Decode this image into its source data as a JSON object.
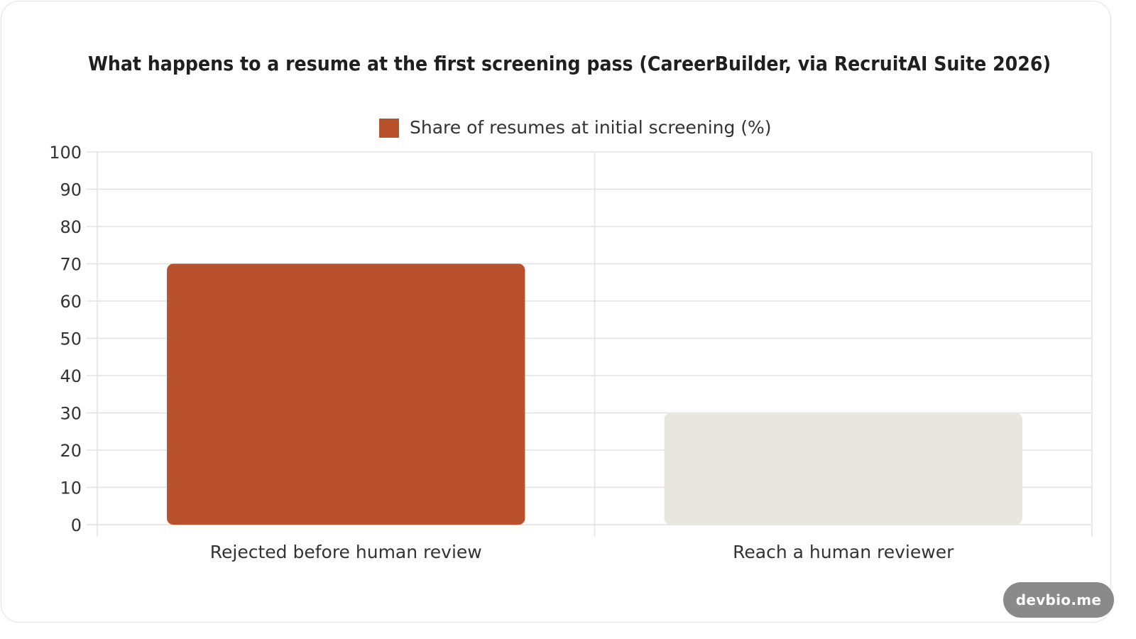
{
  "chart_data": {
    "type": "bar",
    "title": "What happens to a resume at the first screening pass (CareerBuilder, via RecruitAI Suite 2026)",
    "categories": [
      "Rejected before human review",
      "Reach a human reviewer"
    ],
    "series": [
      {
        "name": "Share of resumes at initial screening (%)",
        "values": [
          70,
          30
        ],
        "colors": [
          "#b9512c",
          "#e7e6df"
        ]
      }
    ],
    "legend_color": "#b9512c",
    "ylim": [
      0,
      100
    ],
    "yticks": [
      "0",
      "10",
      "20",
      "30",
      "40",
      "50",
      "60",
      "70",
      "80",
      "90",
      "100"
    ],
    "xlabel": "",
    "ylabel": "",
    "grid": true,
    "legend_position": "top"
  },
  "watermark": "devbio.me"
}
